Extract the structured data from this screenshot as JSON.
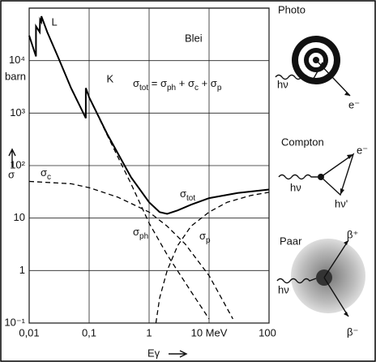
{
  "chart_data": {
    "type": "line",
    "annotation": "Blei",
    "formula": [
      [
        "σ",
        "tot"
      ],
      [
        " = σ",
        "ph"
      ],
      [
        " + σ",
        "c"
      ],
      [
        " + σ",
        "p"
      ]
    ],
    "edges": [
      {
        "label": "L",
        "x": 0.016
      },
      {
        "label": "K",
        "x": 0.088
      }
    ],
    "ylabel": "σ",
    "yunit": "barn",
    "xlabel": "Eγ",
    "xscale": "log",
    "yscale": "log",
    "grid": true,
    "xlim": [
      0.01,
      100
    ],
    "ylim": [
      0.1,
      100000
    ],
    "xticks": [
      {
        "value": 0.01,
        "label": "0,01"
      },
      {
        "value": 0.1,
        "label": "0,1"
      },
      1,
      {
        "value": 10,
        "label": "10 MeV"
      },
      100
    ],
    "yticks": [
      {
        "value": 0.1,
        "label": "10⁻¹"
      },
      1,
      10,
      {
        "value": 100,
        "label": "10²"
      },
      {
        "value": 1000,
        "label": "10³"
      },
      {
        "value": 10000,
        "label": "10⁴"
      }
    ],
    "series": [
      {
        "name": "σtot",
        "color": "#000000",
        "style": "solid",
        "x": [
          0.01,
          0.013,
          0.013,
          0.015,
          0.0152,
          0.0159,
          0.016,
          0.02,
          0.03,
          0.05,
          0.088,
          0.088,
          0.1,
          0.2,
          0.5,
          1,
          1.5,
          2,
          3,
          5,
          10,
          30,
          100
        ],
        "values": [
          30000,
          12000,
          45000,
          35000,
          60000,
          55000,
          70000,
          35000,
          12000,
          3000,
          800,
          3000,
          2000,
          400,
          60,
          20,
          13,
          12,
          14,
          18,
          24,
          30,
          35
        ]
      },
      {
        "name": "σph",
        "color": "#000000",
        "style": "dashed",
        "x": [
          0.1,
          0.2,
          0.5,
          1,
          2,
          5,
          10
        ],
        "values": [
          2000,
          380,
          45,
          8,
          2,
          0.4,
          0.12
        ]
      },
      {
        "name": "σc",
        "color": "#000000",
        "style": "dashed",
        "x": [
          0.01,
          0.05,
          0.1,
          0.3,
          0.5,
          1,
          2,
          4,
          10,
          25
        ],
        "values": [
          50,
          45,
          38,
          25,
          19,
          13,
          7,
          3.2,
          0.8,
          0.12
        ]
      },
      {
        "name": "σp",
        "color": "#000000",
        "style": "dashed",
        "x": [
          1.3,
          1.5,
          2,
          3,
          5,
          10,
          20,
          50,
          100
        ],
        "values": [
          0.1,
          0.3,
          1,
          3,
          7,
          13,
          20,
          27,
          31
        ]
      }
    ]
  },
  "side_panels": [
    {
      "title": "Photo",
      "labels": [
        "hν",
        "e⁻"
      ]
    },
    {
      "title": "Compton",
      "labels": [
        "e⁻",
        "hν",
        "hν'"
      ]
    },
    {
      "title": "Paar",
      "labels": [
        "β⁺",
        "hν",
        "β⁻"
      ]
    }
  ]
}
